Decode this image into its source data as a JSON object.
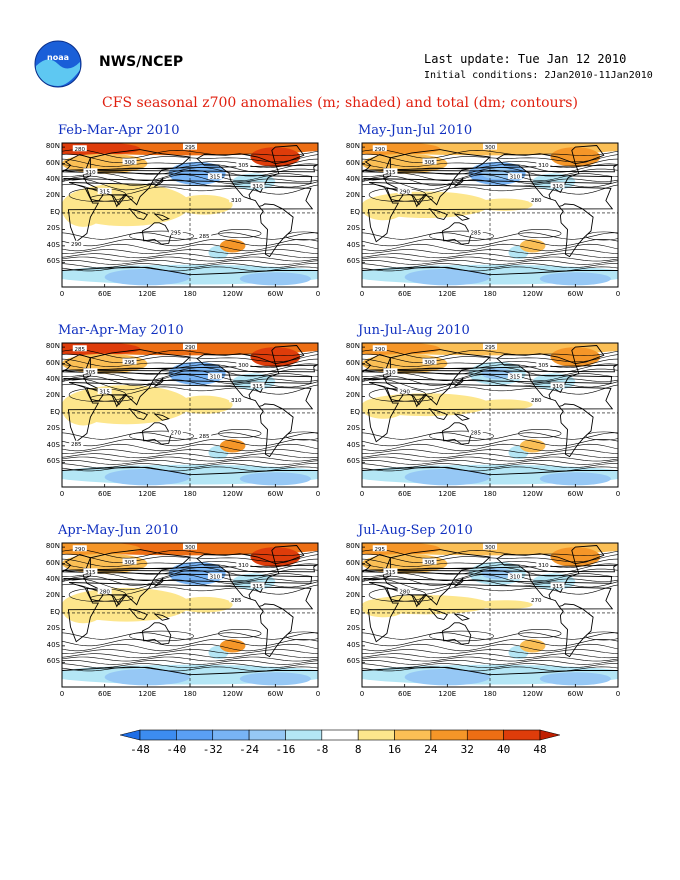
{
  "header": {
    "agency": "NWS/NCEP",
    "logo_label": "noaa",
    "last_update": "Last update: Tue Jan 12 2010",
    "initial_conditions": "Initial conditions: 2Jan2010-11Jan2010"
  },
  "title": "CFS seasonal z700 anomalies (m; shaded) and total (dm; contours)",
  "map_axes": {
    "lat_labels": [
      "80N",
      "60N",
      "40N",
      "20N",
      "EQ",
      "20S",
      "40S",
      "60S"
    ],
    "lon_labels": [
      "0",
      "60E",
      "120E",
      "180",
      "120W",
      "60W",
      "0"
    ]
  },
  "panels": [
    {
      "id": "fma",
      "title": "Feb-Mar-Apr 2010",
      "contour_labels": [
        "280",
        "295",
        "300",
        "305",
        "310",
        "315",
        "310",
        "315",
        "310",
        "295",
        "285",
        "290"
      ],
      "strength": 1.0
    },
    {
      "id": "mjj",
      "title": "May-Jun-Jul 2010",
      "contour_labels": [
        "290",
        "300",
        "305",
        "310",
        "315",
        "310",
        "310",
        "290",
        "280",
        "285"
      ],
      "strength": 0.55
    },
    {
      "id": "mam",
      "title": "Mar-Apr-May 2010",
      "contour_labels": [
        "285",
        "290",
        "295",
        "300",
        "305",
        "310",
        "315",
        "315",
        "310",
        "270",
        "285",
        "285"
      ],
      "strength": 0.9
    },
    {
      "id": "jja",
      "title": "Jun-Jul-Aug 2010",
      "contour_labels": [
        "290",
        "295",
        "300",
        "305",
        "310",
        "315",
        "310",
        "290",
        "280",
        "285"
      ],
      "strength": 0.45
    },
    {
      "id": "amj",
      "title": "Apr-May-Jun 2010",
      "contour_labels": [
        "290",
        "300",
        "305",
        "310",
        "315",
        "310",
        "315",
        "280",
        "285"
      ],
      "strength": 0.75
    },
    {
      "id": "jas",
      "title": "Jul-Aug-Sep 2010",
      "contour_labels": [
        "295",
        "300",
        "305",
        "310",
        "315",
        "310",
        "315",
        "280",
        "270"
      ],
      "strength": 0.35
    }
  ],
  "colorbar": {
    "ticks": [
      "-48",
      "-40",
      "-32",
      "-24",
      "-16",
      "-8",
      "8",
      "16",
      "24",
      "32",
      "40",
      "48"
    ],
    "colors": [
      "#1e6ee6",
      "#3c8cf0",
      "#5aa0f5",
      "#78b4f5",
      "#96c8f5",
      "#b4e6f5",
      "#ffffff",
      "#fde68c",
      "#fbbf55",
      "#f59628",
      "#ed6e14",
      "#de3c0a",
      "#bf1e00"
    ]
  }
}
